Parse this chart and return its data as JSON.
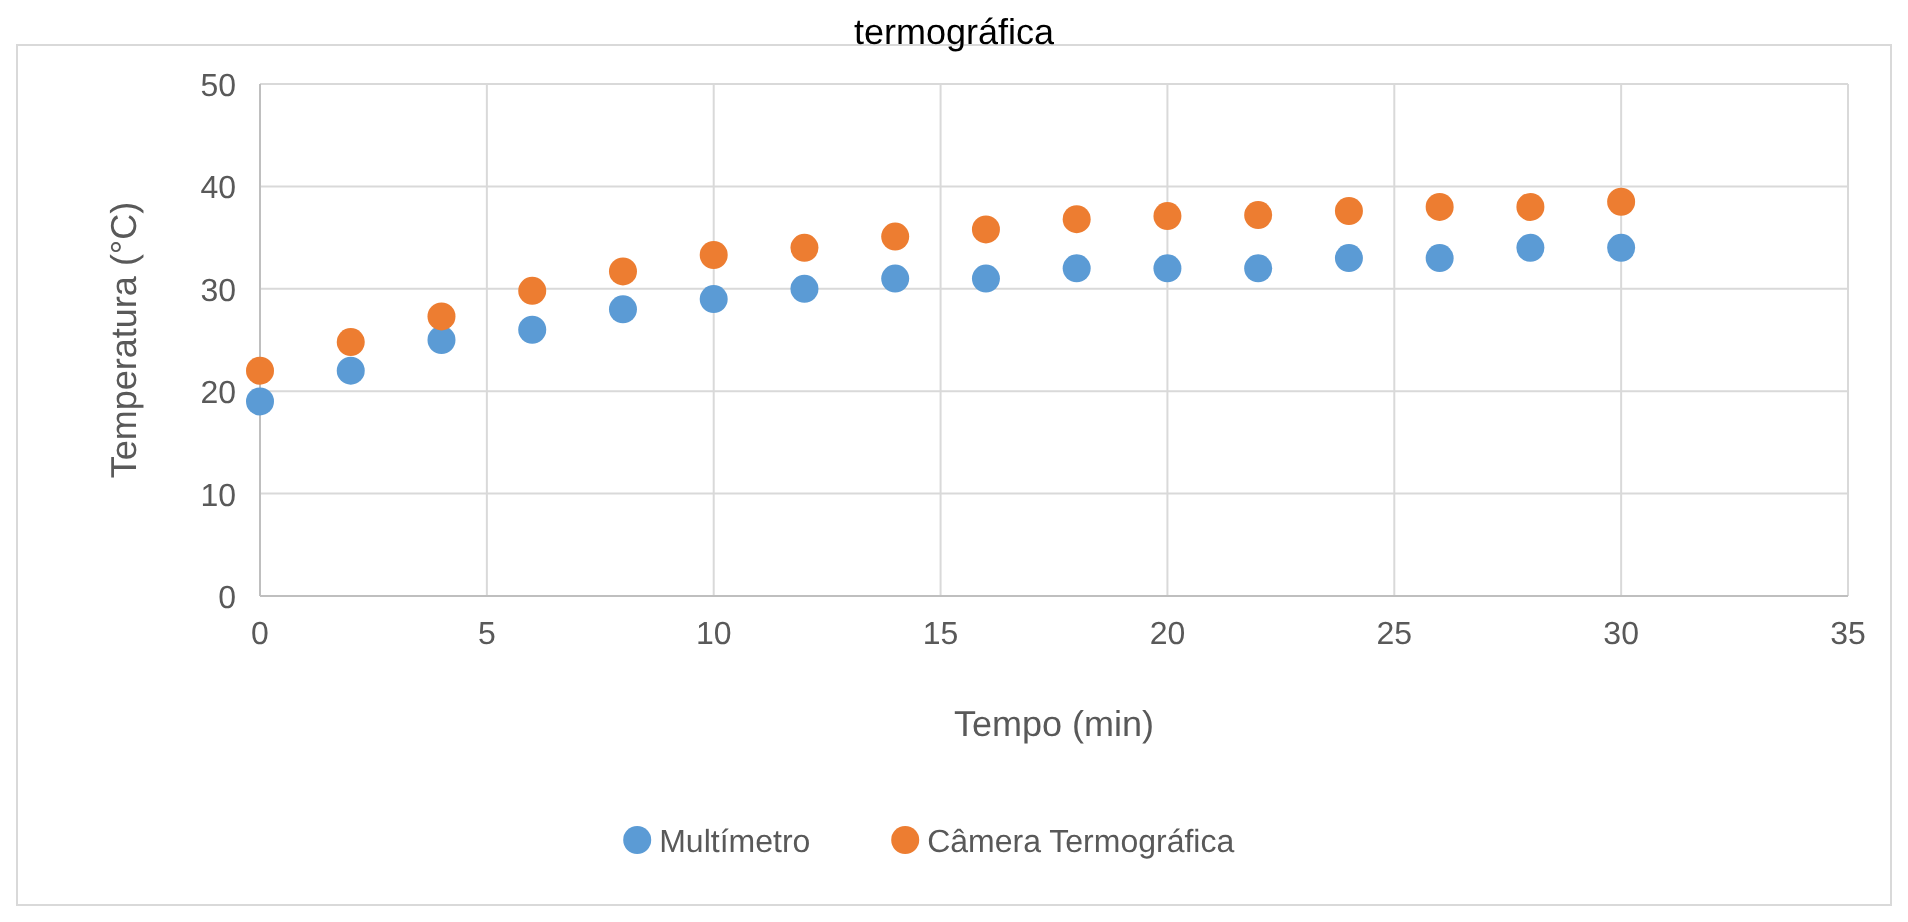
{
  "chart_data": {
    "type": "scatter",
    "title": "termográfica",
    "xlabel": "Tempo (min)",
    "ylabel": "Temperatura (°C)",
    "x": [
      0,
      2,
      4,
      6,
      8,
      10,
      12,
      14,
      16,
      18,
      20,
      22,
      24,
      26,
      28,
      30
    ],
    "series": [
      {
        "name": "Multímetro",
        "color": "#5b9bd5",
        "values": [
          19,
          22,
          25,
          26,
          28,
          29,
          30,
          31,
          31,
          32,
          32,
          32,
          33,
          33,
          34,
          34
        ]
      },
      {
        "name": "Câmera Termográfica",
        "color": "#ed7d31",
        "values": [
          22,
          24.8,
          27.3,
          29.8,
          31.7,
          33.3,
          34,
          35.1,
          35.8,
          36.8,
          37.1,
          37.2,
          37.6,
          38,
          38,
          38.5
        ]
      }
    ],
    "xlim": [
      0,
      35
    ],
    "xticks": [
      0,
      5,
      10,
      15,
      20,
      25,
      30,
      35
    ],
    "ylim": [
      0,
      50
    ],
    "yticks": [
      0,
      10,
      20,
      30,
      40,
      50
    ],
    "grid": true,
    "legend": "bottom",
    "marker": "circle"
  }
}
